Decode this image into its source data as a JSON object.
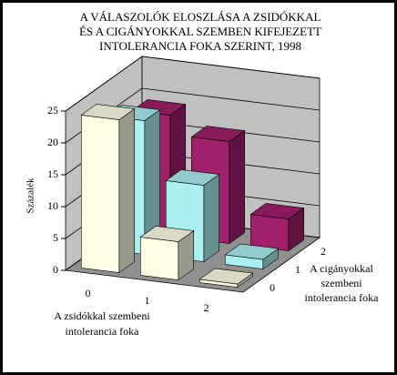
{
  "chart_data": {
    "type": "bar3d",
    "title": [
      "A VÁLASZOLÓK ELOSZLÁSA A ZSIDÓKKAL",
      "ÉS A CIGÁNYOKKAL SZEMBEN KIFEJEZETT",
      "INTOLERANCIA FOKA SZERINT, 1998"
    ],
    "ylabel": "Százalék",
    "xlabel": [
      "A zsidókkal szembeni",
      "intolerancia foka"
    ],
    "zlabel": [
      "A cigányokkal",
      "szembeni",
      "intolerancia foka"
    ],
    "categories": [
      "0",
      "1",
      "2"
    ],
    "series": [
      {
        "name": "0",
        "color": "#ffffe6",
        "values": [
          24,
          6,
          0.5
        ]
      },
      {
        "name": "1",
        "color": "#aaf0f0",
        "values": [
          21,
          12,
          1.5
        ]
      },
      {
        "name": "2",
        "color": "#a0206a",
        "values": [
          19,
          16,
          5
        ]
      }
    ],
    "ylim": [
      0,
      25
    ],
    "yticks": [
      0,
      5,
      10,
      15,
      20,
      25
    ],
    "grid": true
  }
}
